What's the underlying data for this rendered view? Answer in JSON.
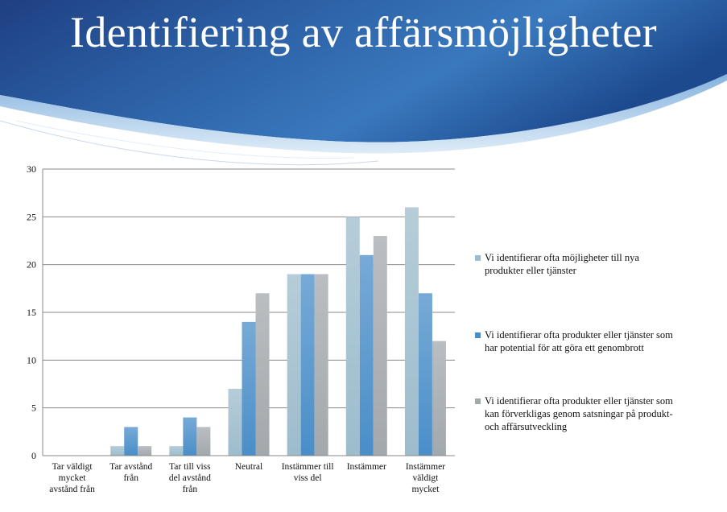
{
  "slide": {
    "title": "Identifiering av affärsmöjligheter"
  },
  "chart_data": {
    "type": "bar",
    "categories": [
      "Tar väldigt mycket avstånd från",
      "Tar avstånd från",
      "Tar till viss del avstånd från",
      "Neutral",
      "Instämmer till viss del",
      "Instämmer",
      "Instämmer väldigt mycket"
    ],
    "category_lines": [
      [
        "Tar väldigt",
        "mycket",
        "avstånd från"
      ],
      [
        "Tar avstånd",
        "från"
      ],
      [
        "Tar till viss",
        "del avstånd",
        "från"
      ],
      [
        "Neutral"
      ],
      [
        "Instämmer till",
        "viss del"
      ],
      [
        "Instämmer"
      ],
      [
        "Instämmer",
        "väldigt",
        "mycket"
      ]
    ],
    "series": [
      {
        "name": "Vi identifierar ofta möjligheter till nya produkter eller tjänster",
        "name_lines": [
          "Vi identifierar ofta möjligheter till nya",
          "produkter eller tjänster"
        ],
        "color": "#9dbccc",
        "values": [
          0,
          1,
          1,
          7,
          19,
          25,
          26
        ]
      },
      {
        "name": "Vi identifierar ofta produkter eller tjänster som har potential för att göra ett genombrott",
        "name_lines": [
          "Vi identifierar ofta produkter eller tjänster som",
          "har potential för att göra ett genombrott"
        ],
        "color": "#4a8ec8",
        "values": [
          0,
          3,
          4,
          14,
          19,
          21,
          17
        ]
      },
      {
        "name": "Vi identifierar ofta produkter eller tjänster som kan förverkligas genom satsningar på produkt- och affärsutveckling",
        "name_lines": [
          "Vi identifierar ofta produkter eller tjänster som",
          "kan förverkligas genom satsningar på produkt-",
          "och affärsutveckling"
        ],
        "color": "#a3a8ad",
        "values": [
          0,
          1,
          3,
          17,
          19,
          23,
          12
        ]
      }
    ],
    "yticks": [
      "0",
      "5",
      "10",
      "15",
      "20",
      "25",
      "30"
    ],
    "ylim": [
      0,
      30
    ],
    "grid": true,
    "legend_position": "right",
    "xlabel": "",
    "ylabel": ""
  }
}
